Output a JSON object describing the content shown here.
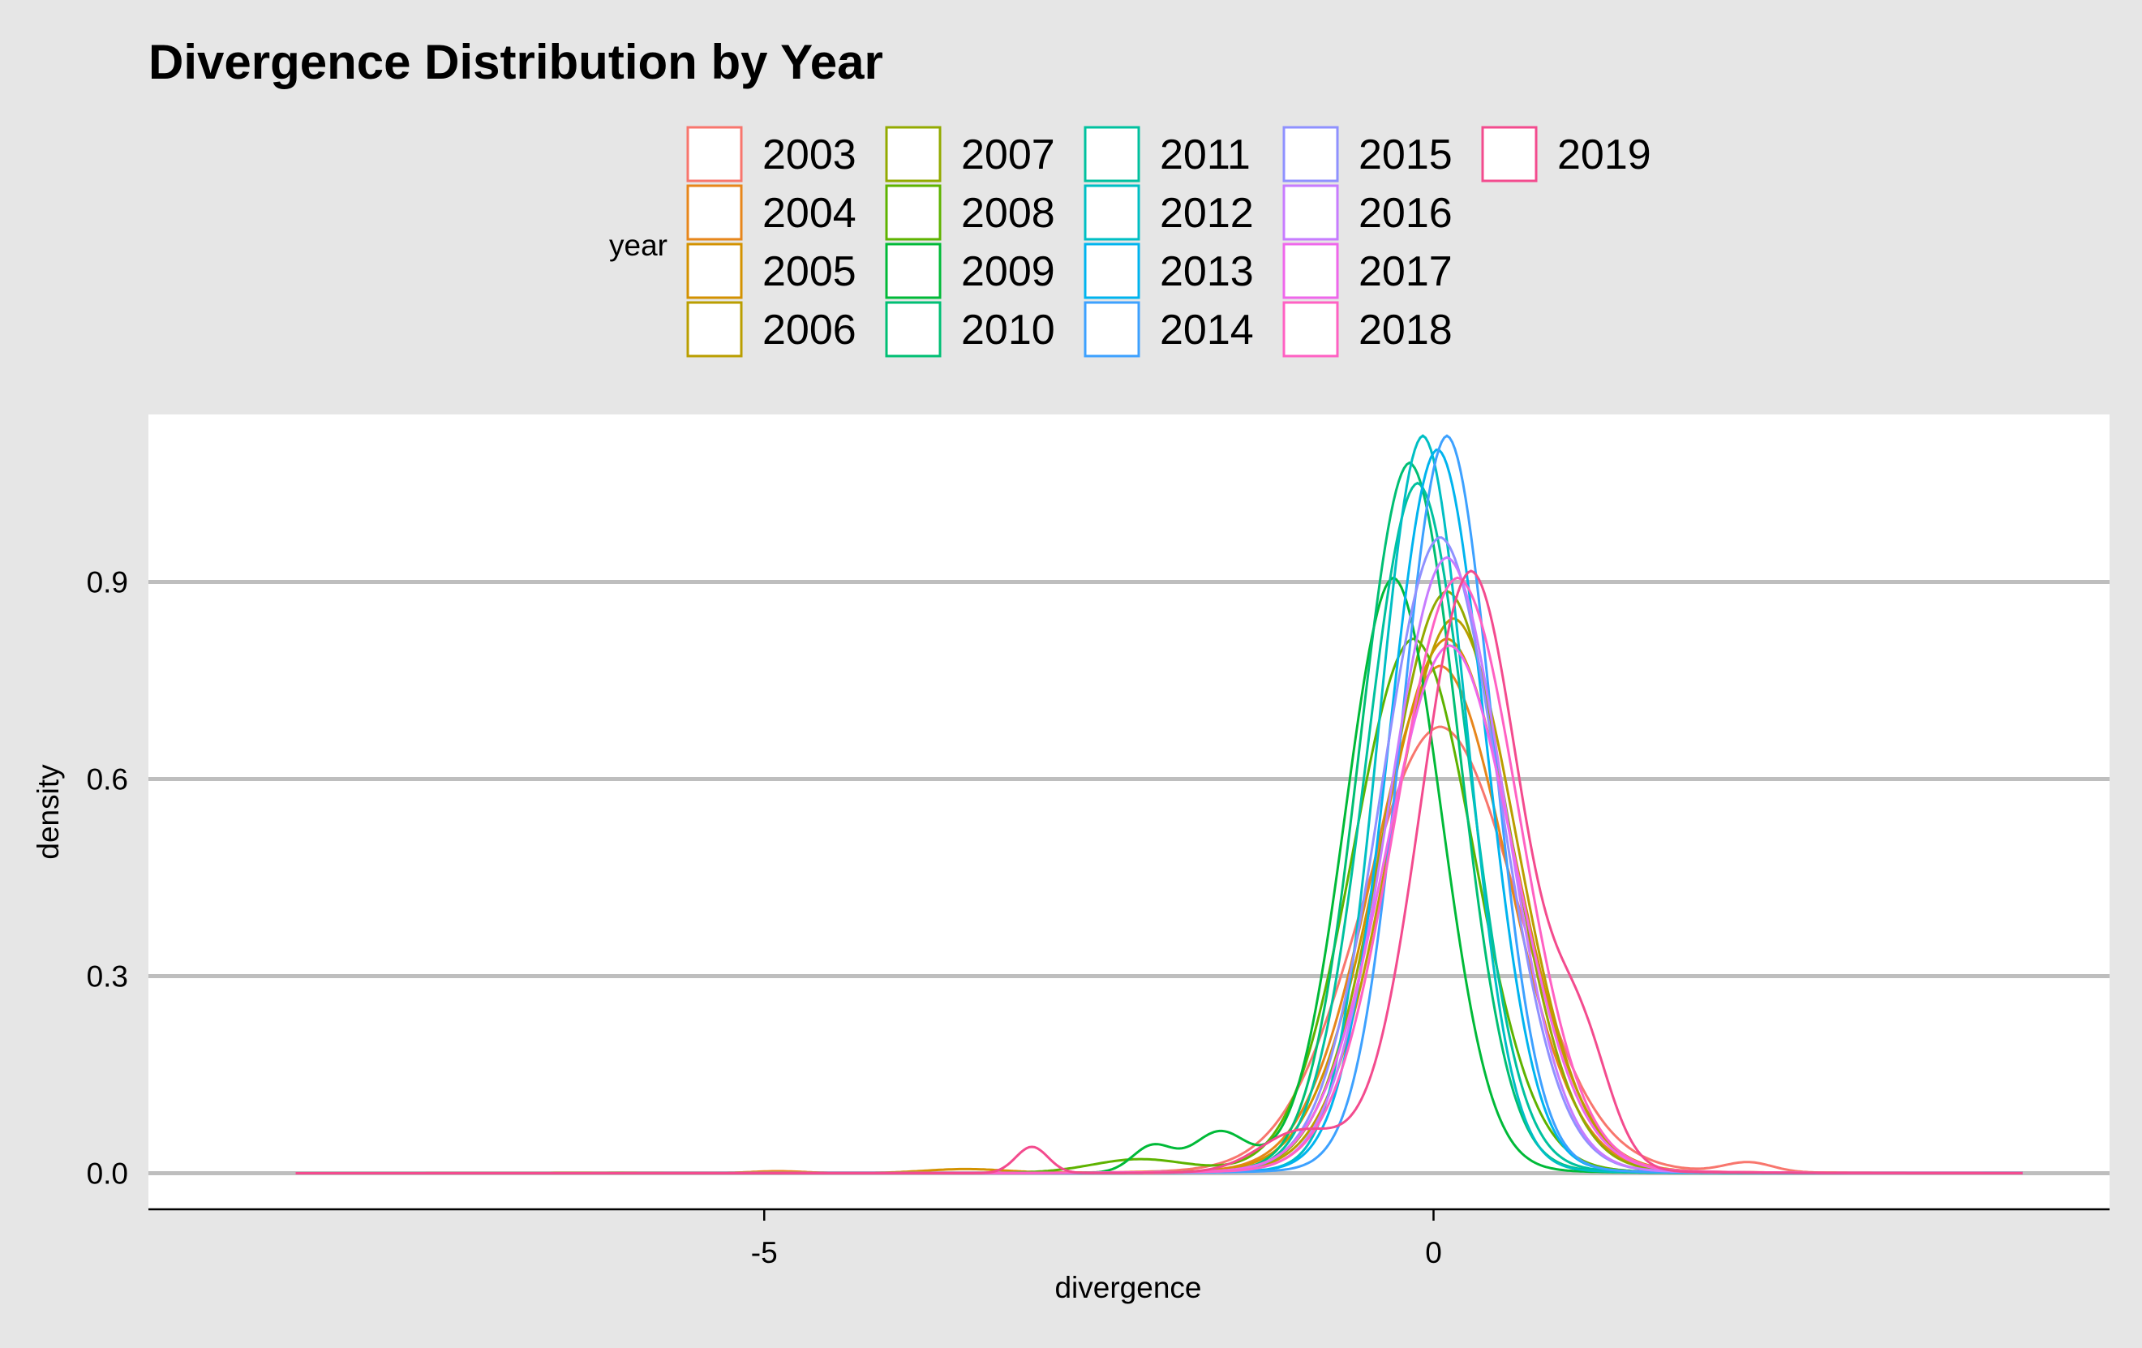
{
  "chart_data": {
    "type": "line",
    "title": "Divergence Distribution by Year",
    "xlabel": "divergence",
    "ylabel": "density",
    "xlim": [
      -9.6,
      5.05
    ],
    "ylim": [
      -0.055,
      1.155
    ],
    "xticks": [
      {
        "value": -5,
        "label": "-5"
      },
      {
        "value": 0,
        "label": "0"
      }
    ],
    "yticks": [
      {
        "value": 0.0,
        "label": "0.0"
      },
      {
        "value": 0.3,
        "label": "0.3"
      },
      {
        "value": 0.6,
        "label": "0.6"
      },
      {
        "value": 0.9,
        "label": "0.9"
      }
    ],
    "grid": "horizontal",
    "legend": {
      "title": "year",
      "placement": "top"
    },
    "series": [
      {
        "name": "2003",
        "color": "#F8766D",
        "mu": 0.05,
        "sigma": 0.58,
        "peak": 0.66,
        "bumps": [
          [
            2.35,
            0.18,
            0.015
          ]
        ]
      },
      {
        "name": "2004",
        "color": "#E7861B",
        "mu": 0.05,
        "sigma": 0.5,
        "peak": 0.75,
        "bumps": [
          [
            -4.9,
            0.2,
            0.003
          ]
        ]
      },
      {
        "name": "2005",
        "color": "#D39200",
        "mu": 0.1,
        "sigma": 0.5,
        "peak": 0.79,
        "bumps": [
          [
            -3.5,
            0.3,
            0.006
          ]
        ]
      },
      {
        "name": "2006",
        "color": "#BA9E00",
        "mu": 0.15,
        "sigma": 0.47,
        "peak": 0.82,
        "bumps": []
      },
      {
        "name": "2007",
        "color": "#93AA00",
        "mu": 0.1,
        "sigma": 0.46,
        "peak": 0.86,
        "bumps": []
      },
      {
        "name": "2008",
        "color": "#5EB300",
        "mu": -0.15,
        "sigma": 0.45,
        "peak": 0.79,
        "bumps": [
          [
            -2.2,
            0.35,
            0.02
          ]
        ]
      },
      {
        "name": "2009",
        "color": "#00BA38",
        "mu": -0.3,
        "sigma": 0.36,
        "peak": 0.88,
        "bumps": [
          [
            -1.6,
            0.2,
            0.06
          ],
          [
            -2.1,
            0.15,
            0.04
          ]
        ]
      },
      {
        "name": "2010",
        "color": "#00BF74",
        "mu": -0.18,
        "sigma": 0.37,
        "peak": 1.05,
        "bumps": []
      },
      {
        "name": "2011",
        "color": "#00C19F",
        "mu": -0.12,
        "sigma": 0.38,
        "peak": 1.02,
        "bumps": []
      },
      {
        "name": "2012",
        "color": "#00BFC4",
        "mu": -0.08,
        "sigma": 0.33,
        "peak": 1.09,
        "bumps": []
      },
      {
        "name": "2013",
        "color": "#00B4EF",
        "mu": 0.03,
        "sigma": 0.36,
        "peak": 1.07,
        "bumps": []
      },
      {
        "name": "2014",
        "color": "#3DA1FF",
        "mu": 0.1,
        "sigma": 0.34,
        "peak": 1.09,
        "bumps": []
      },
      {
        "name": "2015",
        "color": "#8F91FF",
        "mu": 0.05,
        "sigma": 0.44,
        "peak": 0.94,
        "bumps": []
      },
      {
        "name": "2016",
        "color": "#C77CFF",
        "mu": 0.1,
        "sigma": 0.43,
        "peak": 0.91,
        "bumps": []
      },
      {
        "name": "2017",
        "color": "#EF67EB",
        "mu": 0.12,
        "sigma": 0.48,
        "peak": 0.78,
        "bumps": []
      },
      {
        "name": "2018",
        "color": "#FF61C3",
        "mu": 0.18,
        "sigma": 0.46,
        "peak": 0.88,
        "bumps": []
      },
      {
        "name": "2019",
        "color": "#F34B8E",
        "mu": 0.28,
        "sigma": 0.38,
        "peak": 0.89,
        "bumps": [
          [
            1.1,
            0.22,
            0.17
          ],
          [
            -3.0,
            0.12,
            0.04
          ],
          [
            -1.0,
            0.3,
            0.06
          ]
        ]
      }
    ]
  }
}
